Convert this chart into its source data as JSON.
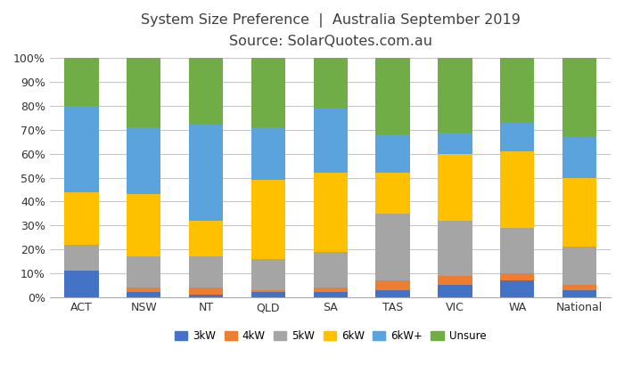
{
  "categories": [
    "ACT",
    "NSW",
    "NT",
    "QLD",
    "SA",
    "TAS",
    "VIC",
    "WA",
    "National"
  ],
  "series_labels": [
    "3kW",
    "4kW",
    "5kW",
    "6kW",
    "6kW+",
    "Unsure"
  ],
  "colors": [
    "#4472C4",
    "#ED7D31",
    "#A5A5A5",
    "#FFC000",
    "#5BA3DC",
    "#70AD47"
  ],
  "data": {
    "ACT": [
      11,
      0,
      11,
      22,
      36,
      20
    ],
    "NSW": [
      2,
      2,
      13,
      26,
      28,
      29
    ],
    "NT": [
      1,
      3,
      13,
      15,
      40,
      28
    ],
    "QLD": [
      2,
      1,
      13,
      33,
      22,
      29
    ],
    "SA": [
      2,
      2,
      15,
      33,
      27,
      21
    ],
    "TAS": [
      3,
      4,
      28,
      17,
      16,
      32
    ],
    "VIC": [
      5,
      4,
      23,
      28,
      9,
      31
    ],
    "WA": [
      7,
      3,
      19,
      32,
      12,
      27
    ],
    "National": [
      3,
      2,
      16,
      29,
      17,
      33
    ]
  },
  "title_line1": "System Size Preference  |  Australia September 2019",
  "title_line2": "Source: SolarQuotes.com.au",
  "ylim": [
    0,
    100
  ],
  "yticks": [
    0,
    10,
    20,
    30,
    40,
    50,
    60,
    70,
    80,
    90,
    100
  ],
  "ytick_labels": [
    "0%",
    "10%",
    "20%",
    "30%",
    "40%",
    "50%",
    "60%",
    "70%",
    "80%",
    "90%",
    "100%"
  ],
  "background_color": "#FFFFFF",
  "grid_color": "#C8C8C8",
  "bar_width": 0.55,
  "title_fontsize": 11.5,
  "tick_fontsize": 9,
  "legend_fontsize": 8.5
}
